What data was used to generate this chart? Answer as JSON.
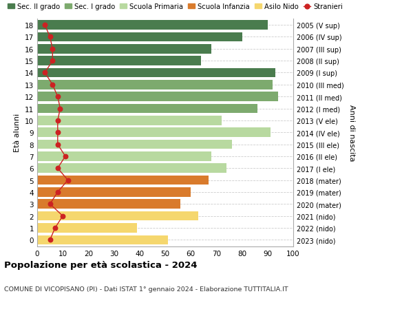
{
  "ages": [
    18,
    17,
    16,
    15,
    14,
    13,
    12,
    11,
    10,
    9,
    8,
    7,
    6,
    5,
    4,
    3,
    2,
    1,
    0
  ],
  "bar_values": [
    90,
    80,
    68,
    64,
    93,
    92,
    94,
    86,
    72,
    91,
    76,
    68,
    74,
    67,
    60,
    56,
    63,
    39,
    51
  ],
  "stranieri": [
    3,
    5,
    6,
    6,
    3,
    6,
    8,
    9,
    8,
    8,
    8,
    11,
    8,
    12,
    8,
    5,
    10,
    7,
    5
  ],
  "right_labels": [
    "2005 (V sup)",
    "2006 (IV sup)",
    "2007 (III sup)",
    "2008 (II sup)",
    "2009 (I sup)",
    "2010 (III med)",
    "2011 (II med)",
    "2012 (I med)",
    "2013 (V ele)",
    "2014 (IV ele)",
    "2015 (III ele)",
    "2016 (II ele)",
    "2017 (I ele)",
    "2018 (mater)",
    "2019 (mater)",
    "2020 (mater)",
    "2021 (nido)",
    "2022 (nido)",
    "2023 (nido)"
  ],
  "bar_colors": [
    "#4a7c4e",
    "#4a7c4e",
    "#4a7c4e",
    "#4a7c4e",
    "#4a7c4e",
    "#7daa6e",
    "#7daa6e",
    "#7daa6e",
    "#b8d9a0",
    "#b8d9a0",
    "#b8d9a0",
    "#b8d9a0",
    "#b8d9a0",
    "#d97b2c",
    "#d97b2c",
    "#d97b2c",
    "#f5d76e",
    "#f5d76e",
    "#f5d76e"
  ],
  "legend_colors": [
    "#4a7c4e",
    "#7daa6e",
    "#b8d9a0",
    "#d97b2c",
    "#f5d76e",
    "#cc2222"
  ],
  "legend_labels": [
    "Sec. II grado",
    "Sec. I grado",
    "Scuola Primaria",
    "Scuola Infanzia",
    "Asilo Nido",
    "Stranieri"
  ],
  "ylabel": "Età alunni",
  "right_ylabel": "Anni di nascita",
  "title": "Popolazione per età scolastica - 2024",
  "subtitle": "COMUNE DI VICOPISANO (PI) - Dati ISTAT 1° gennaio 2024 - Elaborazione TUTTITALIA.IT",
  "xlim": [
    0,
    100
  ],
  "bg_color": "#ffffff",
  "grid_color": "#cccccc",
  "bar_height": 0.78
}
